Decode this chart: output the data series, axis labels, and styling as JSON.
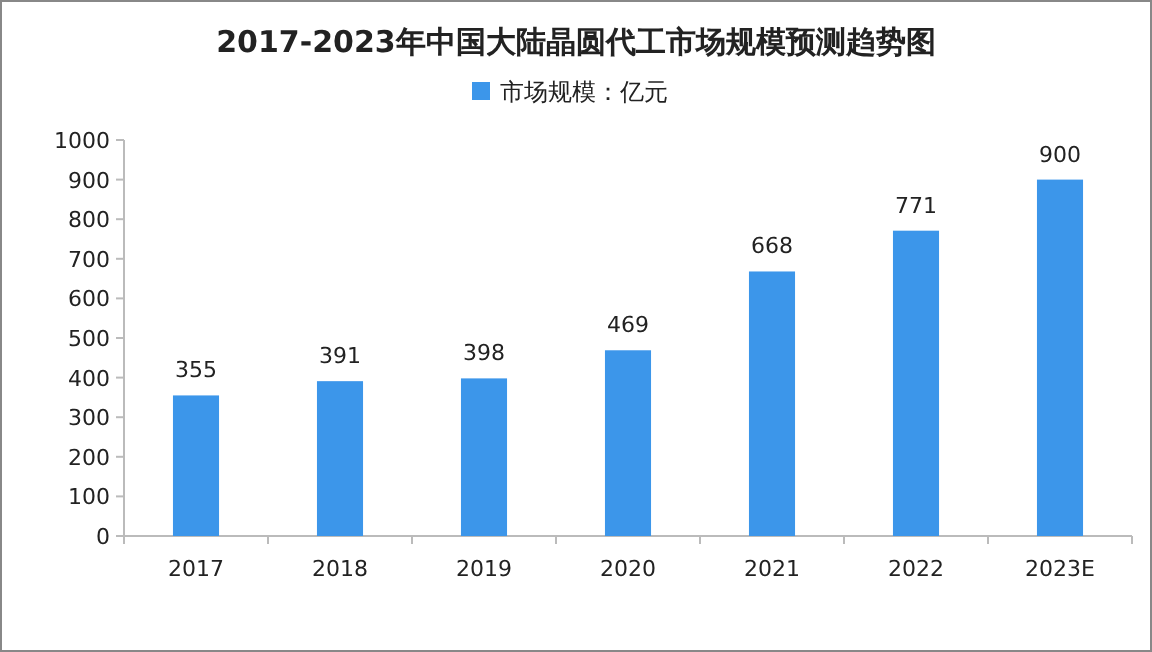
{
  "chart_data": {
    "type": "bar",
    "title": "2017-2023年中国大陆晶圆代工市场规模预测趋势图",
    "categories": [
      "2017",
      "2018",
      "2019",
      "2020",
      "2021",
      "2022",
      "2023E"
    ],
    "series": [
      {
        "name": "市场规模：亿元",
        "color": "#3c96ea",
        "values": [
          355,
          391,
          398,
          469,
          668,
          771,
          900
        ]
      }
    ],
    "ylim": [
      0,
      1000
    ],
    "yticks": [
      0,
      100,
      200,
      300,
      400,
      500,
      600,
      700,
      800,
      900,
      1000
    ],
    "data_labels": true,
    "legend": "top",
    "grid": false
  }
}
